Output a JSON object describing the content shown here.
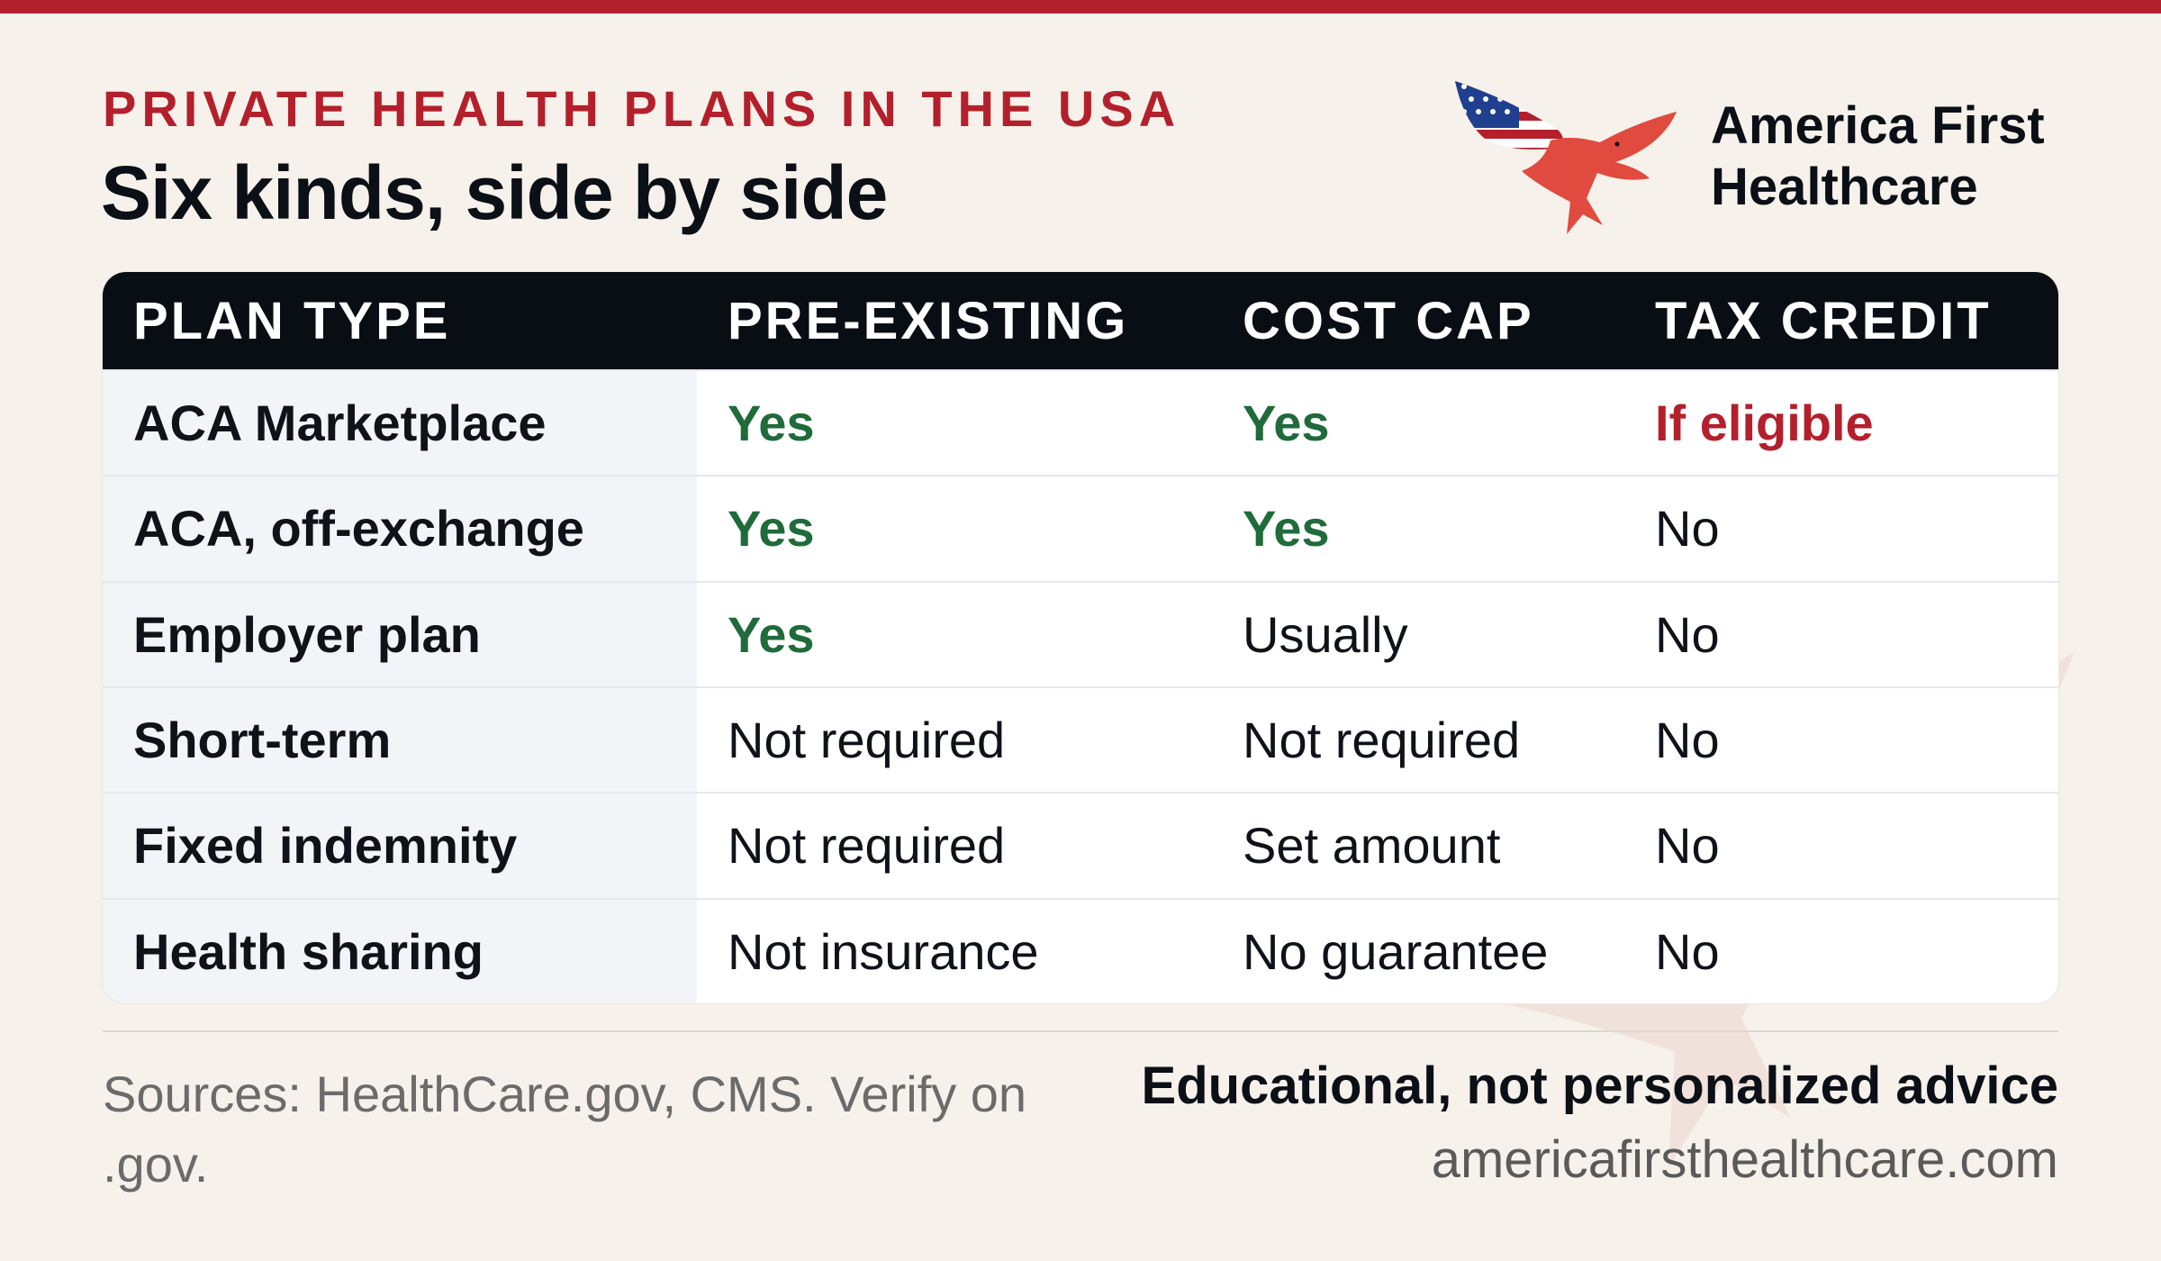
{
  "header": {
    "eyebrow": "PRIVATE HEALTH PLANS IN THE USA",
    "title": "Six kinds, side by side"
  },
  "brand": {
    "line1": "America First",
    "line2": "Healthcare",
    "logo_icon": "eagle-flag-icon"
  },
  "table": {
    "columns": [
      "PLAN TYPE",
      "PRE-EXISTING",
      "COST CAP",
      "TAX CREDIT"
    ],
    "rows": [
      [
        "ACA Marketplace",
        "Yes",
        "Yes",
        "If eligible"
      ],
      [
        "ACA, off-exchange",
        "Yes",
        "Yes",
        "No"
      ],
      [
        "Employer plan",
        "Yes",
        "Usually",
        "No"
      ],
      [
        "Short-term",
        "Not required",
        "Not required",
        "No"
      ],
      [
        "Fixed indemnity",
        "Not required",
        "Set amount",
        "No"
      ],
      [
        "Health sharing",
        "Not insurance",
        "No guarantee",
        "No"
      ]
    ]
  },
  "footer": {
    "sources": "Sources: HealthCare.gov, CMS. Verify on .gov.",
    "disclaimer": "Educational, not personalized advice",
    "website": "americafirsthealthcare.com"
  },
  "colors": {
    "accent_red": "#b3202c",
    "yes_green": "#1f6b3a",
    "header_dark": "#090d14",
    "background": "#f6f1ea"
  }
}
